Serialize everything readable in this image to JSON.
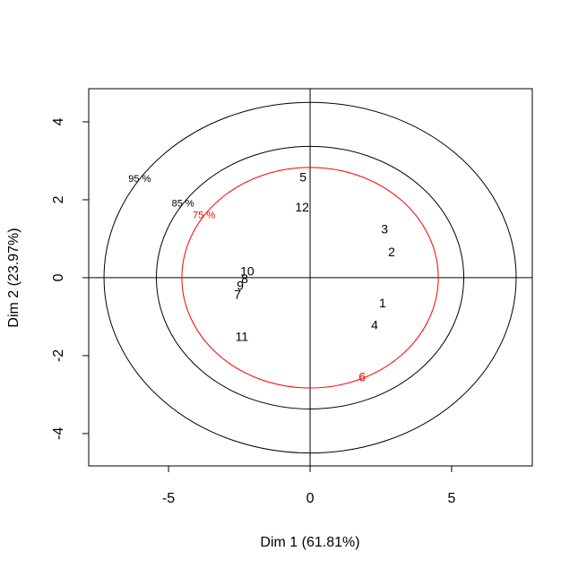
{
  "chart_data": {
    "type": "scatter",
    "xlabel": "Dim  1  (61.81%)",
    "ylabel": "Dim  2  (23.97%)",
    "labels": [
      "1",
      "2",
      "3",
      "4",
      "5",
      "6",
      "7",
      "8",
      "9",
      "10",
      "11",
      "12"
    ],
    "x": [
      2.56,
      2.88,
      2.63,
      2.28,
      -0.25,
      1.84,
      -2.56,
      -2.31,
      -2.47,
      -2.22,
      -2.41,
      -0.28
    ],
    "y": [
      -0.67,
      0.64,
      1.22,
      -1.24,
      2.55,
      -2.57,
      -0.46,
      -0.05,
      -0.23,
      0.14,
      -1.54,
      1.79
    ],
    "colors": [
      "#000000",
      "#000000",
      "#000000",
      "#000000",
      "#000000",
      "#ff0000",
      "#000000",
      "#000000",
      "#000000",
      "#000000",
      "#000000",
      "#000000"
    ],
    "ellipses": [
      {
        "label": "95 %",
        "rx": 7.28,
        "ry": 4.5,
        "color": "#000000"
      },
      {
        "label": "85 %",
        "rx": 5.43,
        "ry": 3.37,
        "color": "#000000"
      },
      {
        "label": "75 %",
        "rx": 4.53,
        "ry": 2.83,
        "color": "#ff0000"
      }
    ],
    "xlim": [
      -7.82,
      7.85
    ],
    "ylim": [
      -4.83,
      4.85
    ],
    "xticks": [
      -5,
      0,
      5
    ],
    "yticks": [
      -4,
      -2,
      0,
      2,
      4
    ]
  }
}
